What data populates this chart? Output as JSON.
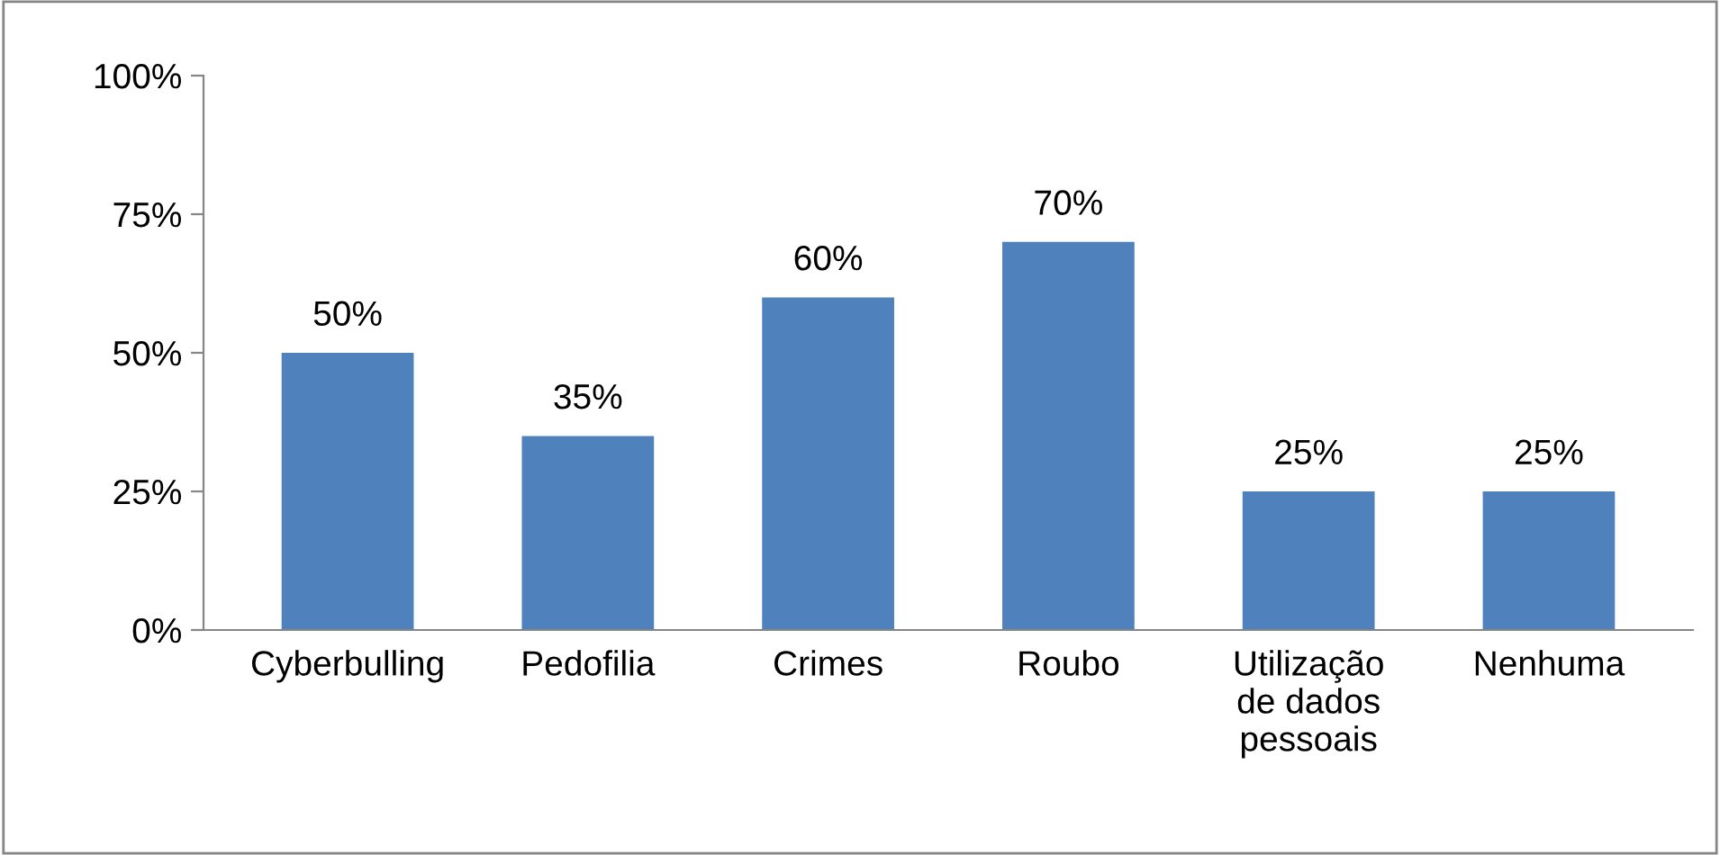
{
  "chart_data": {
    "type": "bar",
    "categories": [
      "Cyberbulling",
      "Pedofilia",
      "Crimes",
      "Roubo",
      "Utilização\nde dados\npessoais",
      "Nenhuma"
    ],
    "values": [
      50,
      35,
      60,
      70,
      25,
      25
    ],
    "value_labels": [
      "50%",
      "35%",
      "60%",
      "70%",
      "25%",
      "25%"
    ],
    "color": "#4f81bd",
    "ylim": [
      0,
      100
    ],
    "yticks": [
      {
        "value": 0,
        "label": "0%"
      },
      {
        "value": 25,
        "label": "25%"
      },
      {
        "value": 50,
        "label": "50%"
      },
      {
        "value": 75,
        "label": "75%"
      },
      {
        "value": 100,
        "label": "100%"
      }
    ],
    "grid": false,
    "legend": false
  }
}
